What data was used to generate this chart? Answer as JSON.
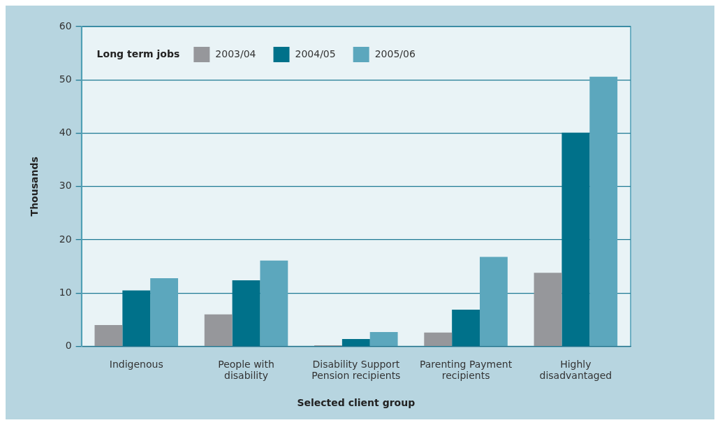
{
  "chart_data": {
    "type": "bar",
    "xlabel": "Selected client group",
    "ylabel": "Thousands",
    "legend_title": "Long term jobs",
    "categories": [
      "Indigenous",
      "People with disability",
      "Disability Support Pension recipients",
      "Parenting Payment recipients",
      "Highly disadvantaged"
    ],
    "series": [
      {
        "name": "2003/04",
        "color": "#96979b",
        "values": [
          4.0,
          6.0,
          0.2,
          2.6,
          13.8
        ]
      },
      {
        "name": "2004/05",
        "color": "#00718a",
        "values": [
          10.5,
          12.4,
          1.4,
          6.9,
          40.1
        ]
      },
      {
        "name": "2005/06",
        "color": "#5ca7bd",
        "values": [
          12.8,
          16.1,
          2.7,
          16.8,
          50.6
        ]
      }
    ],
    "ylim": [
      0,
      60
    ],
    "yticks": [
      0,
      10,
      20,
      30,
      40,
      50,
      60
    ],
    "grid": "y",
    "legend": "top left"
  }
}
